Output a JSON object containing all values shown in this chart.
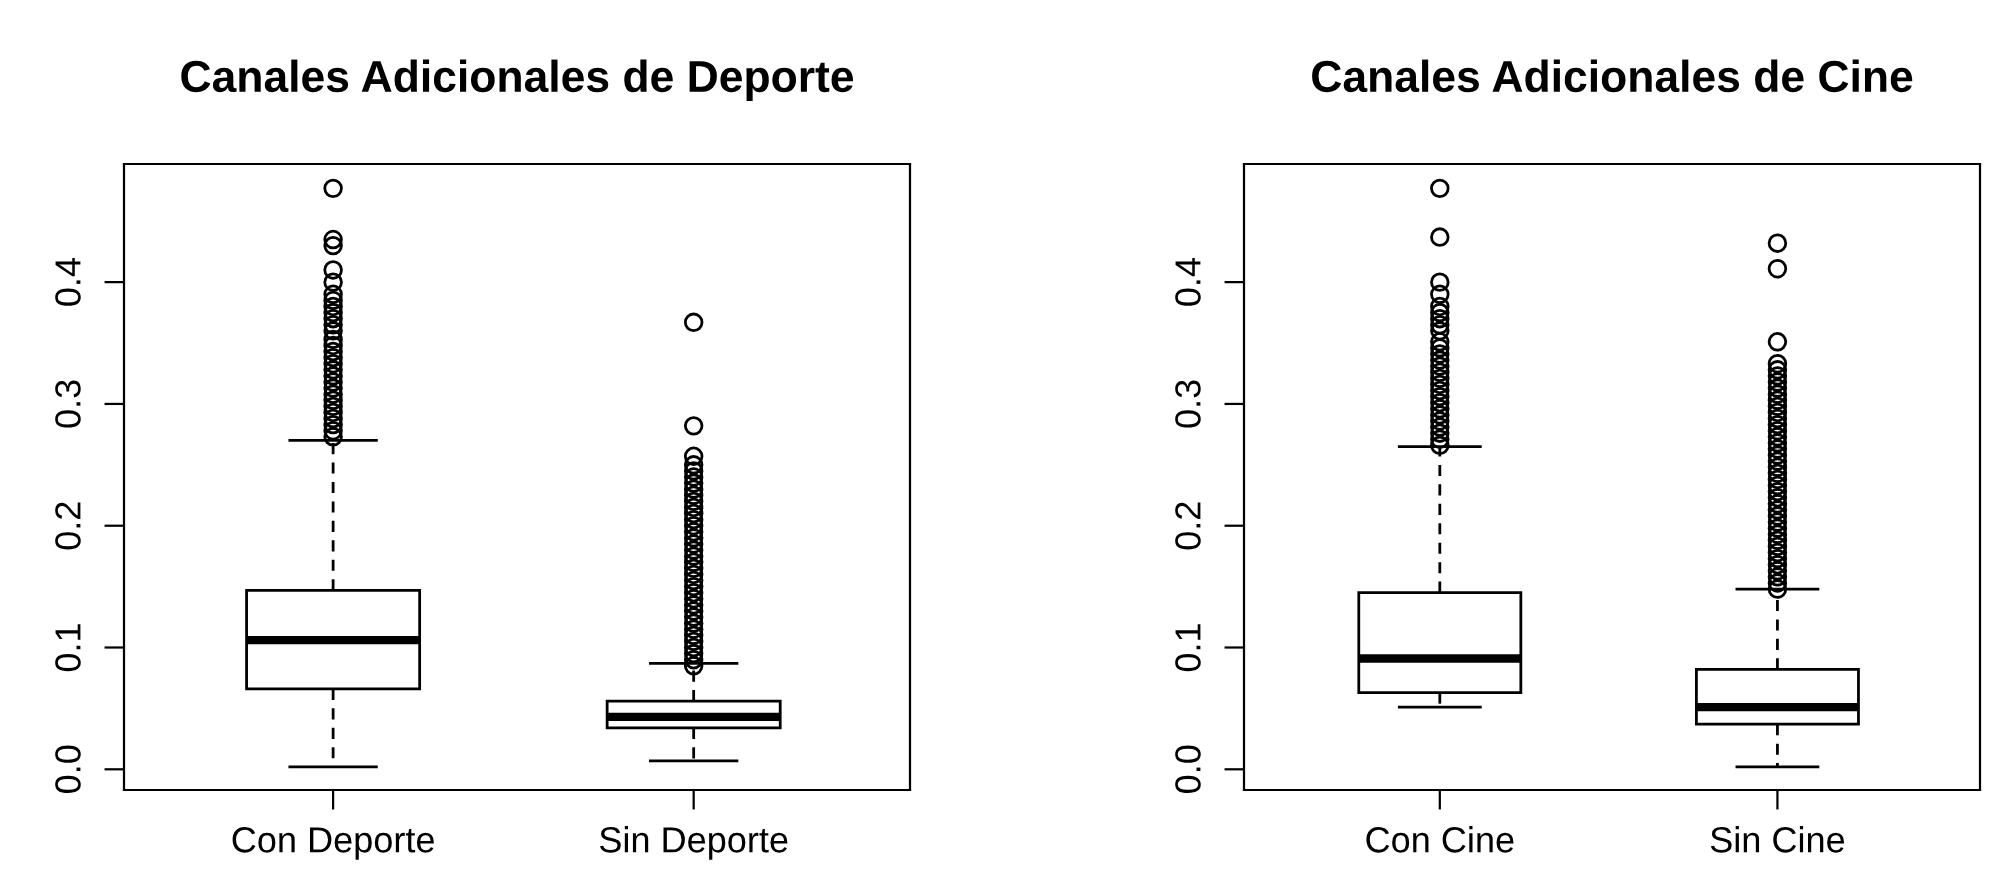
{
  "chart_data": [
    {
      "type": "box",
      "title": "Canales Adicionales de Deporte",
      "categories": [
        "Con Deporte",
        "Sin Deporte"
      ],
      "ylim": [
        -0.017,
        0.497
      ],
      "yticks": [
        {
          "value": 0,
          "label": "0.0"
        },
        0.1,
        0.2,
        0.3,
        0.4
      ],
      "marker": "circle",
      "grid": false,
      "boxes": [
        {
          "low": 0.002,
          "q1": 0.066,
          "median": 0.106,
          "q3": 0.147,
          "high": 0.27,
          "outliers": [
            0.273,
            0.278,
            0.283,
            0.288,
            0.293,
            0.298,
            0.303,
            0.308,
            0.313,
            0.318,
            0.323,
            0.328,
            0.333,
            0.338,
            0.343,
            0.348,
            0.353,
            0.36,
            0.365,
            0.37,
            0.375,
            0.38,
            0.385,
            0.39,
            0.4,
            0.41,
            0.43,
            0.435,
            0.477
          ]
        },
        {
          "low": 0.007,
          "q1": 0.034,
          "median": 0.043,
          "q3": 0.056,
          "high": 0.087,
          "outliers": [
            0.085,
            0.09,
            0.095,
            0.1,
            0.105,
            0.11,
            0.115,
            0.12,
            0.125,
            0.13,
            0.135,
            0.14,
            0.145,
            0.15,
            0.155,
            0.16,
            0.165,
            0.17,
            0.175,
            0.18,
            0.185,
            0.19,
            0.195,
            0.2,
            0.205,
            0.21,
            0.215,
            0.22,
            0.225,
            0.23,
            0.235,
            0.24,
            0.245,
            0.25,
            0.257,
            0.282,
            0.367
          ]
        }
      ]
    },
    {
      "type": "box",
      "title": "Canales Adicionales de Cine",
      "categories": [
        "Con Cine",
        "Sin Cine"
      ],
      "ylim": [
        -0.017,
        0.497
      ],
      "yticks": [
        {
          "value": 0,
          "label": "0.0"
        },
        0.1,
        0.2,
        0.3,
        0.4
      ],
      "marker": "circle",
      "grid": false,
      "boxes": [
        {
          "low": 0.051,
          "q1": 0.063,
          "median": 0.091,
          "q3": 0.145,
          "high": 0.265,
          "outliers": [
            0.266,
            0.271,
            0.276,
            0.281,
            0.286,
            0.291,
            0.296,
            0.301,
            0.306,
            0.311,
            0.316,
            0.321,
            0.326,
            0.331,
            0.336,
            0.341,
            0.346,
            0.351,
            0.36,
            0.365,
            0.37,
            0.375,
            0.38,
            0.39,
            0.4,
            0.437,
            0.477
          ]
        },
        {
          "low": 0.002,
          "q1": 0.037,
          "median": 0.051,
          "q3": 0.082,
          "high": 0.148,
          "outliers": [
            0.148,
            0.153,
            0.158,
            0.163,
            0.168,
            0.173,
            0.178,
            0.183,
            0.188,
            0.193,
            0.198,
            0.203,
            0.208,
            0.213,
            0.218,
            0.223,
            0.228,
            0.233,
            0.238,
            0.243,
            0.248,
            0.253,
            0.258,
            0.263,
            0.268,
            0.273,
            0.278,
            0.283,
            0.288,
            0.293,
            0.298,
            0.303,
            0.308,
            0.313,
            0.318,
            0.323,
            0.328,
            0.333,
            0.351,
            0.411,
            0.432
          ]
        }
      ]
    }
  ]
}
